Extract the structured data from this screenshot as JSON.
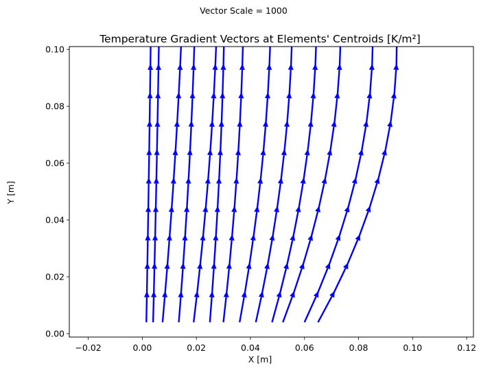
{
  "chart_data": {
    "type": "quiver",
    "suptitle": "Vector Scale = 1000",
    "title": "Temperature Gradient Vectors at Elements' Centroids [K/m²]",
    "xlabel": "X [m]",
    "ylabel": "Y [m]",
    "xlim": [
      -0.027,
      0.1225
    ],
    "ylim": [
      -0.0012,
      0.101
    ],
    "xticks": [
      "−0.02",
      "0.00",
      "0.02",
      "0.04",
      "0.06",
      "0.08",
      "0.10",
      "0.12"
    ],
    "xtick_values": [
      -0.02,
      0,
      0.02,
      0.04,
      0.06,
      0.08,
      0.1,
      0.12
    ],
    "yticks": [
      "0.00",
      "0.02",
      "0.04",
      "0.06",
      "0.08",
      "0.10"
    ],
    "ytick_values": [
      0,
      0.02,
      0.04,
      0.06,
      0.08,
      0.1
    ],
    "grid": false,
    "arrow_color": "#0000ff",
    "scale": 1000,
    "columns": [
      {
        "xb": 0.0015,
        "xt": 0.003,
        "curve": 0.15
      },
      {
        "xb": 0.004,
        "xt": 0.006,
        "curve": 0.2
      },
      {
        "xb": 0.0075,
        "xt": 0.014,
        "curve": 0.3
      },
      {
        "xb": 0.0135,
        "xt": 0.019,
        "curve": 0.4
      },
      {
        "xb": 0.019,
        "xt": 0.027,
        "curve": 0.45
      },
      {
        "xb": 0.025,
        "xt": 0.03,
        "curve": 0.5
      },
      {
        "xb": 0.03,
        "xt": 0.037,
        "curve": 0.55
      },
      {
        "xb": 0.036,
        "xt": 0.047,
        "curve": 0.6
      },
      {
        "xb": 0.042,
        "xt": 0.055,
        "curve": 0.65
      },
      {
        "xb": 0.048,
        "xt": 0.064,
        "curve": 0.7
      },
      {
        "xb": 0.052,
        "xt": 0.073,
        "curve": 0.75
      },
      {
        "xb": 0.06,
        "xt": 0.085,
        "curve": 0.8
      },
      {
        "xb": 0.065,
        "xt": 0.094,
        "curve": 0.85
      }
    ],
    "y_levels": [
      0.004,
      0.014,
      0.024,
      0.034,
      0.044,
      0.054,
      0.064,
      0.074,
      0.084,
      0.094
    ],
    "arrow_length": 0.011
  }
}
